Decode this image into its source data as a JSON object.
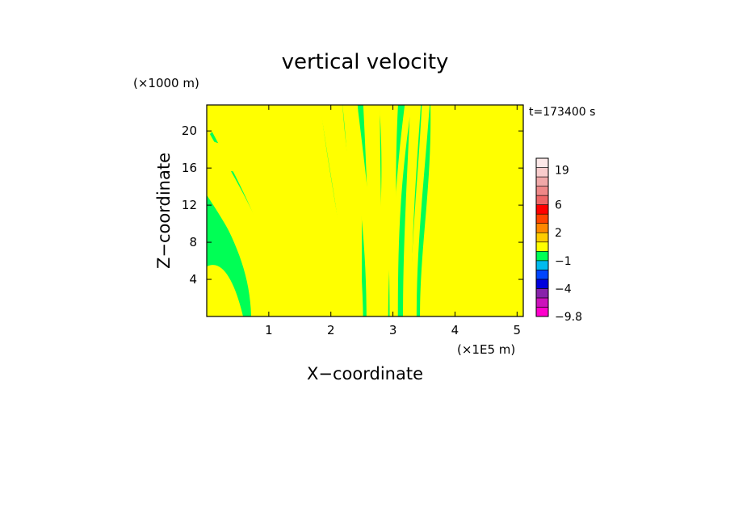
{
  "chart_data": {
    "type": "heatmap",
    "title": "vertical velocity",
    "xlabel": "X−coordinate",
    "ylabel": "Z−coordinate",
    "x_unit": "(×1E5 m)",
    "y_unit": "(×1000 m)",
    "time_label": "t=173400 s",
    "xlim": [
      0,
      5.1
    ],
    "ylim": [
      0,
      22.8
    ],
    "x_ticks": [
      1,
      2,
      3,
      4,
      5
    ],
    "y_ticks": [
      4,
      8,
      12,
      16,
      20
    ],
    "colorbar": {
      "levels": [
        -9.8,
        -8,
        -6,
        -4,
        -3,
        -2,
        -1,
        0,
        1,
        2,
        3,
        4,
        6,
        9,
        12,
        15,
        19,
        22
      ],
      "colors": [
        "#ff00cc",
        "#cc11bb",
        "#8822aa",
        "#0000dd",
        "#0044ff",
        "#00bbee",
        "#00ff55",
        "#ffff00",
        "#ffcc00",
        "#ff8800",
        "#ff4400",
        "#ff0000",
        "#ee6666",
        "#ee8888",
        "#f0a8a8",
        "#f8cccc",
        "#fce8e8"
      ],
      "tick_labels": [
        {
          "value": 19,
          "label": "19"
        },
        {
          "value": 6,
          "label": "6"
        },
        {
          "value": 2,
          "label": "2"
        },
        {
          "value": -1,
          "label": "−1"
        },
        {
          "value": -4,
          "label": "−4"
        },
        {
          "value": -9.8,
          "label": "−9.8"
        }
      ]
    },
    "field_colors": {
      "negative": "#00ff55",
      "positive": "#ffff00"
    }
  }
}
